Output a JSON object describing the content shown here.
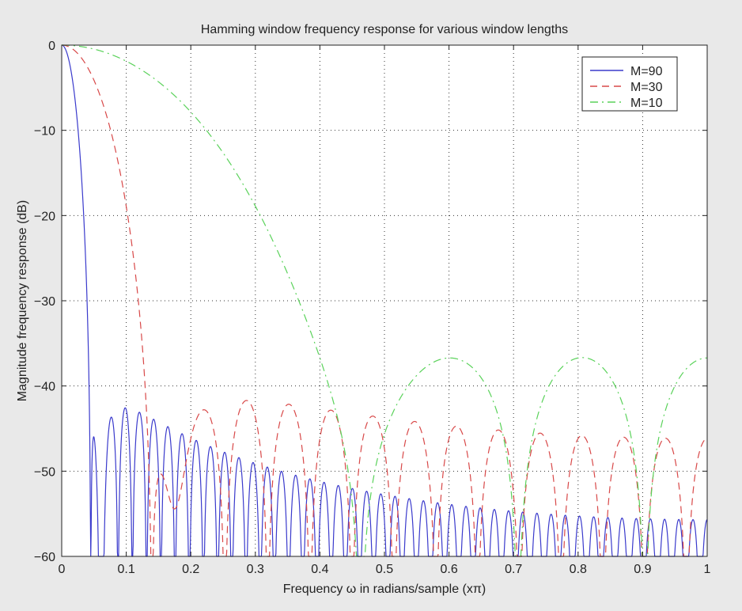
{
  "chart_data": {
    "type": "line",
    "title": "Hamming window frequency response for various window lengths",
    "xlabel": "Frequency ω in radians/sample (xπ)",
    "ylabel": "Magnitude frequency response (dB)",
    "xlim": [
      0,
      1
    ],
    "ylim": [
      -60,
      0
    ],
    "xticks": [
      0,
      0.1,
      0.2,
      0.3,
      0.4,
      0.5,
      0.6,
      0.7,
      0.8,
      0.9,
      1
    ],
    "xtick_labels": [
      "0",
      "0.1",
      "0.2",
      "0.3",
      "0.4",
      "0.5",
      "0.6",
      "0.7",
      "0.8",
      "0.9",
      "1"
    ],
    "yticks": [
      0,
      -10,
      -20,
      -30,
      -40,
      -50,
      -60
    ],
    "ytick_labels": [
      "0",
      "−10",
      "−20",
      "−30",
      "−40",
      "−50",
      "−60"
    ],
    "grid": true,
    "grid_style": "dotted",
    "legend_position": "top-right",
    "series": [
      {
        "name": "M=90",
        "window_length": 90,
        "color": "#3a3acc",
        "dash": "solid"
      },
      {
        "name": "M=30",
        "window_length": 30,
        "color": "#d84848",
        "dash": "dashed"
      },
      {
        "name": "M=10",
        "window_length": 10,
        "color": "#5ad25a",
        "dash": "dashdot"
      }
    ]
  }
}
